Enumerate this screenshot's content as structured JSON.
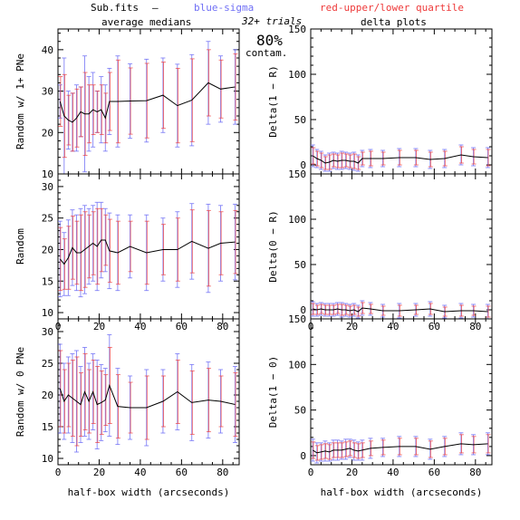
{
  "header": {
    "file": "Sub.fits",
    "dash": "—",
    "blue_label": "blue-sigma",
    "red_label": "red-upper/lower quartile",
    "avg_title": "average medians",
    "delta_title": "delta plots",
    "trials": "32+ trials",
    "contam_pct": "80%",
    "contam_word": "contam."
  },
  "colors": {
    "line": "#000000",
    "blue": "#6f6ff5",
    "red": "#ee3a3a",
    "frame": "#000000"
  },
  "xlabel": "half-box width (arcseconds)",
  "chart_data": [
    {
      "type": "line",
      "panel": "left-top",
      "ylabel": "Random w/ 1+ PNe",
      "xlim": [
        0,
        88
      ],
      "ylim": [
        10,
        45
      ],
      "yticks": [
        10,
        20,
        30,
        40
      ],
      "xticks": [
        0,
        20,
        40,
        60,
        80
      ],
      "show_xtick_labels": false,
      "x": [
        1,
        3,
        5,
        7,
        9,
        11,
        13,
        15,
        17,
        19,
        21,
        23,
        25,
        29,
        35,
        43,
        51,
        58,
        65,
        73,
        79,
        86
      ],
      "y": [
        27.5,
        24.0,
        23.0,
        22.5,
        23.5,
        25.0,
        24.5,
        24.5,
        25.5,
        25.0,
        25.5,
        23.5,
        27.5,
        27.5,
        27.6,
        27.7,
        29.0,
        26.5,
        27.8,
        32.0,
        30.5,
        31.0
      ],
      "sigma": [
        4,
        14,
        7,
        7,
        8,
        6,
        14,
        9,
        9,
        5,
        8,
        8,
        8,
        11,
        9,
        10,
        9,
        10,
        11,
        10,
        8,
        9
      ],
      "quartile": [
        6,
        10,
        6,
        7,
        7,
        6,
        10,
        7,
        6,
        5,
        6,
        6,
        7,
        10,
        8,
        9,
        8,
        9,
        10,
        8,
        7,
        8
      ]
    },
    {
      "type": "line",
      "panel": "right-top",
      "ylabel": "Delta(1 − R)",
      "xlim": [
        0,
        88
      ],
      "ylim": [
        -10,
        150
      ],
      "yticks": [
        0,
        50,
        100,
        150
      ],
      "xticks": [
        0,
        20,
        40,
        60,
        80
      ],
      "show_xtick_labels": false,
      "x": [
        1,
        3,
        5,
        7,
        9,
        11,
        13,
        15,
        17,
        19,
        21,
        23,
        25,
        29,
        35,
        43,
        51,
        58,
        65,
        73,
        79,
        86
      ],
      "y": [
        10,
        7,
        5,
        2,
        3,
        5,
        4,
        5,
        5,
        4,
        4,
        2,
        7,
        7,
        7,
        8,
        8,
        6,
        7,
        11,
        9,
        8
      ],
      "sigma": [
        12,
        10,
        10,
        9,
        10,
        9,
        9,
        10,
        9,
        9,
        10,
        9,
        9,
        10,
        9,
        10,
        10,
        10,
        10,
        11,
        10,
        11
      ],
      "quartile": [
        9,
        8,
        8,
        7,
        8,
        7,
        7,
        8,
        7,
        7,
        8,
        7,
        7,
        8,
        7,
        8,
        8,
        8,
        8,
        9,
        8,
        9
      ]
    },
    {
      "type": "line",
      "panel": "left-middle",
      "ylabel": "Random",
      "xlim": [
        0,
        88
      ],
      "ylim": [
        9,
        32
      ],
      "yticks": [
        10,
        15,
        20,
        25,
        30
      ],
      "xticks": [
        0,
        20,
        40,
        60,
        80
      ],
      "show_xtick_labels": true,
      "x": [
        1,
        3,
        5,
        7,
        9,
        11,
        13,
        15,
        17,
        19,
        21,
        23,
        25,
        29,
        35,
        43,
        51,
        58,
        65,
        73,
        79,
        86
      ],
      "y": [
        18.5,
        17.7,
        18.7,
        20.3,
        19.5,
        19.5,
        20.0,
        20.5,
        21.0,
        20.5,
        21.5,
        21.5,
        19.8,
        19.5,
        20.5,
        19.5,
        20.0,
        20.0,
        21.3,
        20.2,
        21.0,
        21.2
      ],
      "sigma": [
        6,
        5,
        6,
        6,
        6,
        7,
        7,
        6,
        6,
        7,
        6,
        5,
        6,
        6,
        5,
        6,
        5,
        6,
        6,
        7,
        6,
        6
      ],
      "quartile": [
        5,
        4,
        5,
        5,
        5,
        6,
        6,
        5,
        5,
        6,
        5,
        4,
        5,
        5,
        4,
        5,
        4,
        5,
        5,
        6,
        5,
        5
      ]
    },
    {
      "type": "line",
      "panel": "right-middle",
      "ylabel": "Delta(0 − R)",
      "xlim": [
        0,
        88
      ],
      "ylim": [
        -10,
        150
      ],
      "yticks": [
        0,
        50,
        100,
        150
      ],
      "xticks": [
        0,
        20,
        40,
        60,
        80
      ],
      "show_xtick_labels": true,
      "x": [
        1,
        3,
        5,
        7,
        9,
        11,
        13,
        15,
        17,
        19,
        21,
        23,
        25,
        29,
        35,
        43,
        51,
        58,
        65,
        73,
        79,
        86
      ],
      "y": [
        1,
        0,
        1,
        0,
        0,
        0,
        1,
        0,
        0,
        -1,
        0,
        -2,
        2,
        1,
        -1,
        -1,
        0,
        1,
        -2,
        -1,
        -1,
        -2
      ],
      "sigma": [
        8,
        7,
        7,
        7,
        7,
        7,
        7,
        8,
        7,
        7,
        7,
        7,
        8,
        7,
        7,
        8,
        7,
        8,
        7,
        8,
        7,
        8
      ],
      "quartile": [
        6,
        5,
        5,
        5,
        5,
        5,
        5,
        6,
        5,
        5,
        5,
        5,
        6,
        5,
        5,
        6,
        5,
        6,
        5,
        6,
        5,
        6
      ]
    },
    {
      "type": "line",
      "panel": "left-bottom",
      "ylabel": "Random w/ 0 PNe",
      "xlim": [
        0,
        88
      ],
      "ylim": [
        9,
        32
      ],
      "yticks": [
        10,
        15,
        20,
        25,
        30
      ],
      "xticks": [
        0,
        20,
        40,
        60,
        80
      ],
      "show_xtick_labels": true,
      "x": [
        1,
        3,
        5,
        7,
        9,
        11,
        13,
        15,
        17,
        19,
        21,
        23,
        25,
        29,
        35,
        43,
        51,
        58,
        65,
        73,
        79,
        86
      ],
      "y": [
        21.0,
        19.0,
        20.0,
        19.5,
        19.0,
        18.5,
        20.5,
        19.0,
        20.5,
        18.5,
        18.8,
        19.2,
        21.5,
        18.2,
        18.0,
        18.0,
        19.0,
        20.5,
        18.8,
        19.2,
        19.0,
        18.5
      ],
      "sigma": [
        7,
        6,
        6,
        7,
        8,
        6,
        7,
        6,
        6,
        7,
        6,
        5,
        8,
        6,
        5,
        6,
        5,
        6,
        6,
        6,
        5,
        6
      ],
      "quartile": [
        6,
        5,
        5,
        6,
        7,
        5,
        6,
        5,
        5,
        6,
        5,
        4,
        6,
        5,
        4,
        5,
        4,
        5,
        5,
        5,
        4,
        5
      ]
    },
    {
      "type": "line",
      "panel": "right-bottom",
      "ylabel": "Delta(1 − 0)",
      "xlim": [
        0,
        88
      ],
      "ylim": [
        -10,
        150
      ],
      "yticks": [
        0,
        50,
        100,
        150
      ],
      "xticks": [
        0,
        20,
        40,
        60,
        80
      ],
      "show_xtick_labels": true,
      "x": [
        1,
        3,
        5,
        7,
        9,
        11,
        13,
        15,
        17,
        19,
        21,
        23,
        25,
        29,
        35,
        43,
        51,
        58,
        65,
        73,
        79,
        86
      ],
      "y": [
        6,
        3,
        4,
        5,
        4,
        6,
        6,
        6,
        7,
        8,
        6,
        5,
        6,
        8,
        9,
        10,
        10,
        7,
        10,
        13,
        12,
        13
      ],
      "sigma": [
        12,
        11,
        10,
        11,
        10,
        11,
        11,
        10,
        11,
        10,
        11,
        10,
        11,
        11,
        10,
        11,
        11,
        11,
        11,
        12,
        11,
        12
      ],
      "quartile": [
        9,
        8,
        8,
        8,
        8,
        8,
        8,
        8,
        8,
        8,
        8,
        8,
        8,
        8,
        8,
        9,
        9,
        9,
        9,
        10,
        9,
        10
      ]
    }
  ]
}
